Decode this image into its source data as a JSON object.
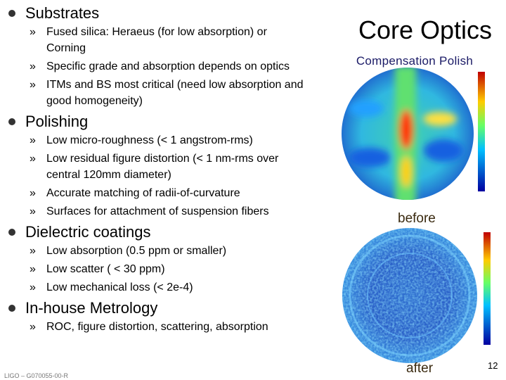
{
  "slide": {
    "bullet_sections": [
      {
        "heading": "Substrates",
        "items": [
          [
            "Fused silica: Heraeus (for low absorption) or",
            "Corning"
          ],
          [
            "Specific grade and absorption depends on optics"
          ],
          [
            "ITMs and BS most critical (need low absorption and",
            "good homogeneity)"
          ]
        ]
      },
      {
        "heading": "Polishing",
        "items": [
          [
            "Low micro-roughness (< 1 angstrom-rms)"
          ],
          [
            "Low residual figure distortion (< 1 nm-rms over",
            "central 120mm diameter)"
          ],
          [
            "Accurate matching of radii-of-curvature"
          ],
          [
            "Surfaces for attachment of suspension fibers"
          ]
        ]
      },
      {
        "heading": "Dielectric coatings",
        "items": [
          [
            "Low absorption (0.5 ppm or smaller)"
          ],
          [
            "Low scatter ( < 30 ppm)"
          ],
          [
            "Low mechanical loss (< 2e-4)"
          ]
        ]
      },
      {
        "heading": "In-house Metrology",
        "items": [
          [
            "ROC, figure distortion, scattering, absorption"
          ]
        ]
      }
    ],
    "sub_bullet": "»",
    "title": "Core Optics",
    "subtitle": "Compensation Polish",
    "image_captions": [
      "before",
      "after"
    ],
    "footer": "LIGO – G070055-00-R",
    "page_number": "12"
  }
}
